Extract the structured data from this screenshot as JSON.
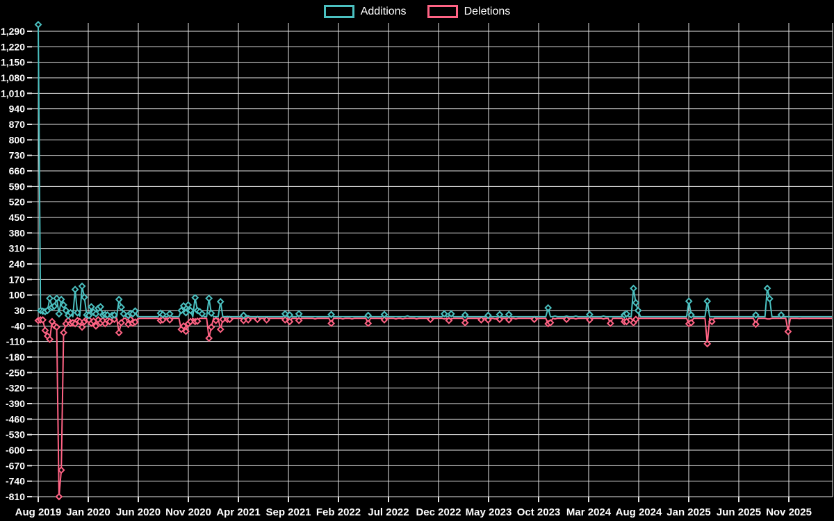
{
  "legend": {
    "items": [
      {
        "label": "Additions",
        "color": "#4bc0c0"
      },
      {
        "label": "Deletions",
        "color": "#ff6384"
      }
    ]
  },
  "colors": {
    "background": "#000000",
    "grid": "#e6e6e6",
    "text": "#ffffff",
    "additions": "#4bc0c0",
    "deletions": "#ff6384"
  },
  "chart_data": {
    "type": "line",
    "title": "",
    "xlabel": "",
    "ylabel": "",
    "grid": true,
    "legend_position": "top-center",
    "x_ticks": [
      "Aug 2019",
      "Jan 2020",
      "Jun 2020",
      "Nov 2020",
      "Apr 2021",
      "Sep 2021",
      "Feb 2022",
      "Jul 2022",
      "Dec 2022",
      "May 2023",
      "Oct 2023",
      "Mar 2024",
      "Aug 2024",
      "Jan 2025",
      "Jun 2025",
      "Nov 2025"
    ],
    "y_ticks": [
      "1,290",
      "1,220",
      "1,150",
      "1,080",
      "1,010",
      "940",
      "870",
      "800",
      "730",
      "660",
      "590",
      "520",
      "450",
      "380",
      "310",
      "240",
      "170",
      "100",
      "30",
      "-40",
      "-110",
      "-180",
      "-250",
      "-320",
      "-390",
      "-460",
      "-530",
      "-600",
      "-670",
      "-740",
      "-810"
    ],
    "y_axis": {
      "min": -810,
      "max": 1290,
      "step": 70
    },
    "x_axis": {
      "unit": "week",
      "weeks_total": 345,
      "label_every_months": 5
    },
    "series": [
      {
        "name": "Additions",
        "color": "#4bc0c0",
        "baseline": 2,
        "points": [
          [
            0,
            1320
          ],
          [
            1,
            30
          ],
          [
            2,
            27
          ],
          [
            3,
            25
          ],
          [
            4,
            30
          ],
          [
            5,
            85
          ],
          [
            6,
            45
          ],
          [
            7,
            50
          ],
          [
            8,
            85
          ],
          [
            9,
            15
          ],
          [
            10,
            80
          ],
          [
            11,
            55
          ],
          [
            12,
            30
          ],
          [
            13,
            8
          ],
          [
            14,
            20
          ],
          [
            16,
            125
          ],
          [
            17,
            20
          ],
          [
            18,
            5
          ],
          [
            19,
            140
          ],
          [
            20,
            90
          ],
          [
            21,
            10
          ],
          [
            22,
            8
          ],
          [
            23,
            47
          ],
          [
            24,
            22
          ],
          [
            25,
            15
          ],
          [
            26,
            40
          ],
          [
            27,
            47
          ],
          [
            28,
            10
          ],
          [
            29,
            12
          ],
          [
            30,
            10
          ],
          [
            32,
            8
          ],
          [
            33,
            10
          ],
          [
            35,
            80
          ],
          [
            36,
            45
          ],
          [
            37,
            15
          ],
          [
            39,
            8
          ],
          [
            40,
            17
          ],
          [
            41,
            15
          ],
          [
            42,
            28
          ],
          [
            43,
            3
          ],
          [
            53,
            18
          ],
          [
            54,
            12
          ],
          [
            57,
            15
          ],
          [
            62,
            30
          ],
          [
            63,
            51
          ],
          [
            64,
            20
          ],
          [
            65,
            55
          ],
          [
            66,
            30
          ],
          [
            68,
            88
          ],
          [
            69,
            30
          ],
          [
            70,
            25
          ],
          [
            71,
            15
          ],
          [
            74,
            85
          ],
          [
            75,
            18
          ],
          [
            79,
            70
          ],
          [
            82,
            3
          ],
          [
            89,
            8
          ],
          [
            91,
            6
          ],
          [
            107,
            15
          ],
          [
            109,
            10
          ],
          [
            113,
            15
          ],
          [
            127,
            12
          ],
          [
            143,
            8
          ],
          [
            150,
            12
          ],
          [
            160,
            6
          ],
          [
            176,
            15
          ],
          [
            178,
            5
          ],
          [
            179,
            15
          ],
          [
            185,
            10
          ],
          [
            195,
            8
          ],
          [
            200,
            12
          ],
          [
            204,
            12
          ],
          [
            221,
            42
          ],
          [
            224,
            5
          ],
          [
            229,
            5
          ],
          [
            233,
            5
          ],
          [
            239,
            12
          ],
          [
            245,
            5
          ],
          [
            254,
            10
          ],
          [
            255,
            15
          ],
          [
            258,
            130
          ],
          [
            259,
            65
          ],
          [
            260,
            30
          ],
          [
            282,
            72
          ],
          [
            283,
            10
          ],
          [
            290,
            72
          ],
          [
            311,
            10
          ],
          [
            316,
            130
          ],
          [
            317,
            83
          ],
          [
            322,
            10
          ],
          [
            330,
            2
          ]
        ]
      },
      {
        "name": "Deletions",
        "color": "#ff6384",
        "baseline": -5,
        "points": [
          [
            0,
            -15
          ],
          [
            1,
            -12
          ],
          [
            2,
            -12
          ],
          [
            3,
            -60
          ],
          [
            4,
            -85
          ],
          [
            5,
            -100
          ],
          [
            6,
            -20
          ],
          [
            7,
            -38
          ],
          [
            8,
            -45
          ],
          [
            9,
            -810
          ],
          [
            10,
            -690
          ],
          [
            11,
            -70
          ],
          [
            12,
            -30
          ],
          [
            13,
            -15
          ],
          [
            14,
            -28
          ],
          [
            15,
            -25
          ],
          [
            16,
            -30
          ],
          [
            17,
            -15
          ],
          [
            18,
            -20
          ],
          [
            19,
            -45
          ],
          [
            20,
            -20
          ],
          [
            21,
            -10
          ],
          [
            22,
            -12
          ],
          [
            23,
            -28
          ],
          [
            24,
            -18
          ],
          [
            25,
            -40
          ],
          [
            26,
            -12
          ],
          [
            27,
            -25
          ],
          [
            28,
            -15
          ],
          [
            29,
            -30
          ],
          [
            30,
            -15
          ],
          [
            31,
            -20
          ],
          [
            32,
            -8
          ],
          [
            33,
            -10
          ],
          [
            35,
            -70
          ],
          [
            36,
            -25
          ],
          [
            39,
            -32
          ],
          [
            40,
            -10
          ],
          [
            41,
            -28
          ],
          [
            42,
            -22
          ],
          [
            43,
            -8
          ],
          [
            53,
            -15
          ],
          [
            54,
            -12
          ],
          [
            57,
            -12
          ],
          [
            62,
            -55
          ],
          [
            63,
            -40
          ],
          [
            64,
            -64
          ],
          [
            65,
            -30
          ],
          [
            66,
            -20
          ],
          [
            68,
            -20
          ],
          [
            69,
            -18
          ],
          [
            74,
            -95
          ],
          [
            75,
            -45
          ],
          [
            77,
            -15
          ],
          [
            79,
            -55
          ],
          [
            80,
            -10
          ],
          [
            82,
            -10
          ],
          [
            83,
            -10
          ],
          [
            89,
            -15
          ],
          [
            91,
            -12
          ],
          [
            95,
            -10
          ],
          [
            99,
            -12
          ],
          [
            107,
            -12
          ],
          [
            109,
            -20
          ],
          [
            113,
            -15
          ],
          [
            120,
            -8
          ],
          [
            127,
            -28
          ],
          [
            132,
            -8
          ],
          [
            136,
            -8
          ],
          [
            143,
            -28
          ],
          [
            150,
            -12
          ],
          [
            155,
            -8
          ],
          [
            158,
            -8
          ],
          [
            164,
            -8
          ],
          [
            170,
            -10
          ],
          [
            176,
            -8
          ],
          [
            178,
            -15
          ],
          [
            179,
            -8
          ],
          [
            185,
            -25
          ],
          [
            192,
            -12
          ],
          [
            195,
            -12
          ],
          [
            198,
            -8
          ],
          [
            200,
            -10
          ],
          [
            204,
            -12
          ],
          [
            207,
            -8
          ],
          [
            215,
            -10
          ],
          [
            221,
            -30
          ],
          [
            222,
            -25
          ],
          [
            224,
            -8
          ],
          [
            229,
            -10
          ],
          [
            233,
            -8
          ],
          [
            239,
            -12
          ],
          [
            245,
            -8
          ],
          [
            248,
            -28
          ],
          [
            254,
            -20
          ],
          [
            255,
            -20
          ],
          [
            258,
            -25
          ],
          [
            259,
            -10
          ],
          [
            282,
            -30
          ],
          [
            283,
            -25
          ],
          [
            290,
            -120
          ],
          [
            292,
            -20
          ],
          [
            311,
            -32
          ],
          [
            316,
            -8
          ],
          [
            317,
            -8
          ],
          [
            325,
            -65
          ],
          [
            330,
            -6
          ]
        ]
      }
    ]
  }
}
